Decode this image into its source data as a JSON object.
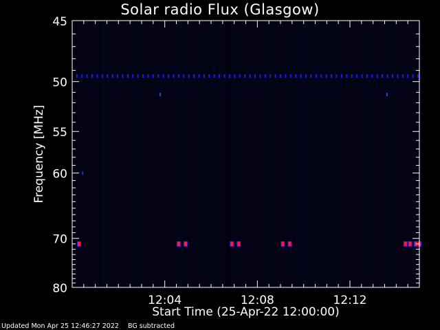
{
  "chart_data": {
    "type": "heatmap",
    "title": "Solar radio Flux (Glasgow)",
    "xlabel": "Start Time (25-Apr-22 12:00:00)",
    "ylabel": "Frequency [MHz]",
    "x_unit": "minutes after 12:00:00",
    "xlim": [
      0,
      15
    ],
    "x_ticks": [
      {
        "value": 4,
        "label": "12:04"
      },
      {
        "value": 8,
        "label": "12:08"
      },
      {
        "value": 12,
        "label": "12:12"
      }
    ],
    "ylim": [
      45,
      80
    ],
    "y_scale": "reciprocal",
    "y_ticks": [
      {
        "value": 45,
        "label": "45"
      },
      {
        "value": 50,
        "label": "50"
      },
      {
        "value": 55,
        "label": "55"
      },
      {
        "value": 60,
        "label": "60"
      },
      {
        "value": 70,
        "label": "70"
      },
      {
        "value": 80,
        "label": "80"
      }
    ],
    "background_color": "#02020f",
    "features": [
      {
        "name": "interference-49.5MHz",
        "frequency_mhz": 49.5,
        "color": "#1a1aff",
        "periodic_every_min": 0.22,
        "time_range": [
          0.2,
          15
        ]
      },
      {
        "name": "interference-71MHz",
        "frequency_mhz": 71,
        "color": "#ff1a3c",
        "times_min": [
          0.3,
          4.6,
          4.9,
          6.9,
          7.2,
          9.1,
          9.4,
          14.4,
          14.6,
          14.85,
          15.0
        ]
      },
      {
        "name": "dot-51.2MHz",
        "frequency_mhz": 51.2,
        "color": "#3838ff",
        "times_min": [
          3.8,
          13.6
        ]
      },
      {
        "name": "dot-60MHz",
        "frequency_mhz": 60,
        "color": "#2828cc",
        "times_min": [
          0.45
        ]
      }
    ]
  },
  "footer": {
    "updated": "Updated Mon Apr 25 12:46:27 2022",
    "note": "BG subtracted"
  }
}
